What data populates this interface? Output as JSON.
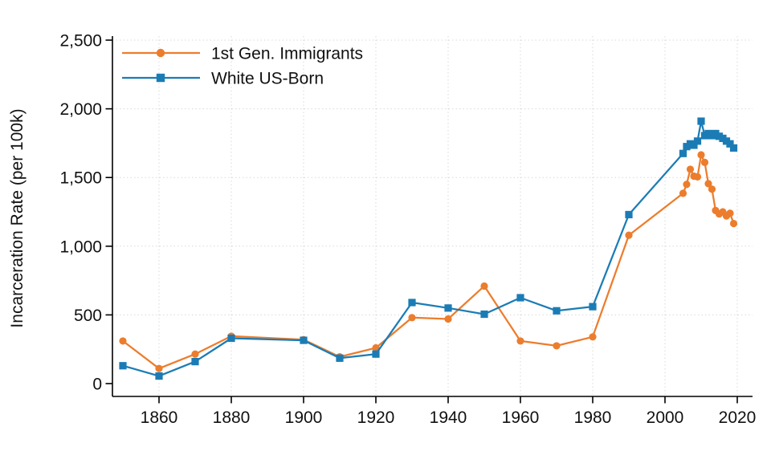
{
  "figure": {
    "title": "",
    "y_axis_title": "Incarceration Rate (per 100k)"
  },
  "chart_data": {
    "type": "line",
    "title": "",
    "xlabel": "",
    "ylabel": "Incarceration Rate (per 100k)",
    "ylim": [
      0,
      2500
    ],
    "xlim": [
      1847,
      2024
    ],
    "grid": "dotted, both axes, at every major tick",
    "legend_position": "top-left inside plot, no border",
    "background": "#ffffff",
    "axis_color": "#000000",
    "grid_color": "#d9d9d9",
    "x_ticks": [
      1860,
      1880,
      1900,
      1920,
      1940,
      1960,
      1980,
      2000,
      2020
    ],
    "y_ticks": [
      {
        "value": 0,
        "label": "0"
      },
      {
        "value": 500,
        "label": "500"
      },
      {
        "value": 1000,
        "label": "1,000"
      },
      {
        "value": 1500,
        "label": "1,500"
      },
      {
        "value": 2000,
        "label": "2,000"
      },
      {
        "value": 2500,
        "label": "2,500"
      }
    ],
    "x": [
      1850,
      1860,
      1870,
      1880,
      1900,
      1910,
      1920,
      1930,
      1940,
      1950,
      1960,
      1970,
      1980,
      1990,
      2005,
      2006,
      2007,
      2008,
      2009,
      2010,
      2011,
      2012,
      2013,
      2014,
      2015,
      2016,
      2017,
      2018,
      2019
    ],
    "series": [
      {
        "name": "1st Gen. Immigrants",
        "color": "#EC7D2D",
        "marker": "circle",
        "values": [
          310,
          110,
          215,
          345,
          320,
          195,
          260,
          480,
          470,
          710,
          310,
          275,
          340,
          1080,
          1385,
          1450,
          1560,
          1510,
          1505,
          1665,
          1610,
          1455,
          1415,
          1260,
          1235,
          1250,
          1220,
          1240,
          1165
        ]
      },
      {
        "name": "White US-Born",
        "color": "#1B7CB5",
        "marker": "square",
        "values": [
          130,
          55,
          160,
          330,
          315,
          185,
          215,
          590,
          550,
          505,
          625,
          530,
          560,
          1230,
          1675,
          1725,
          1745,
          1735,
          1765,
          1910,
          1805,
          1820,
          1805,
          1820,
          1800,
          1785,
          1765,
          1745,
          1715
        ]
      }
    ]
  }
}
